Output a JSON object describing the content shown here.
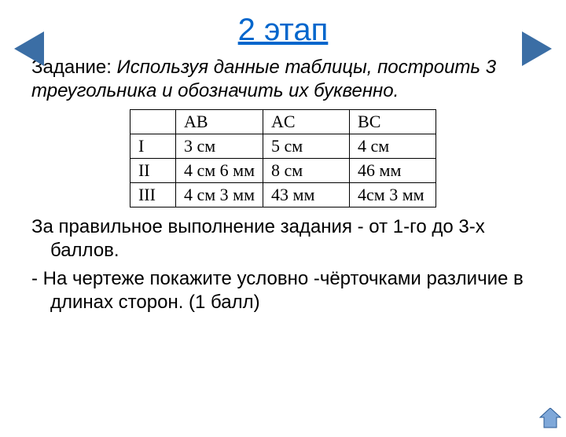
{
  "colors": {
    "title": "#0066cc",
    "arrow_prev": "#3b6ea5",
    "arrow_next": "#3b6ea5",
    "home_fill": "#7fa8d9",
    "home_outline": "#2a5a94",
    "text": "#000000",
    "table_border": "#000000"
  },
  "title": "2 этап",
  "task": {
    "label": "Задание: ",
    "body": "Используя данные таблицы, построить 3 треугольника и обозначить их буквенно."
  },
  "table": {
    "columns": [
      "",
      "AB",
      "AC",
      "BC"
    ],
    "rows": [
      [
        "I",
        "3 см",
        "5 см",
        "4 см"
      ],
      [
        "II",
        "4 см 6 мм",
        "8 см",
        "46 мм"
      ],
      [
        "III",
        "4 см 3 мм",
        "43 мм",
        "4см 3 мм"
      ]
    ],
    "header_fontsize": 22,
    "cell_fontsize": 22
  },
  "para1": "За правильное выполнение задания - от 1-го до 3-х баллов.",
  "para2": "- На чертеже покажите условно -чёрточками различие в длинах сторон. (1 балл)"
}
